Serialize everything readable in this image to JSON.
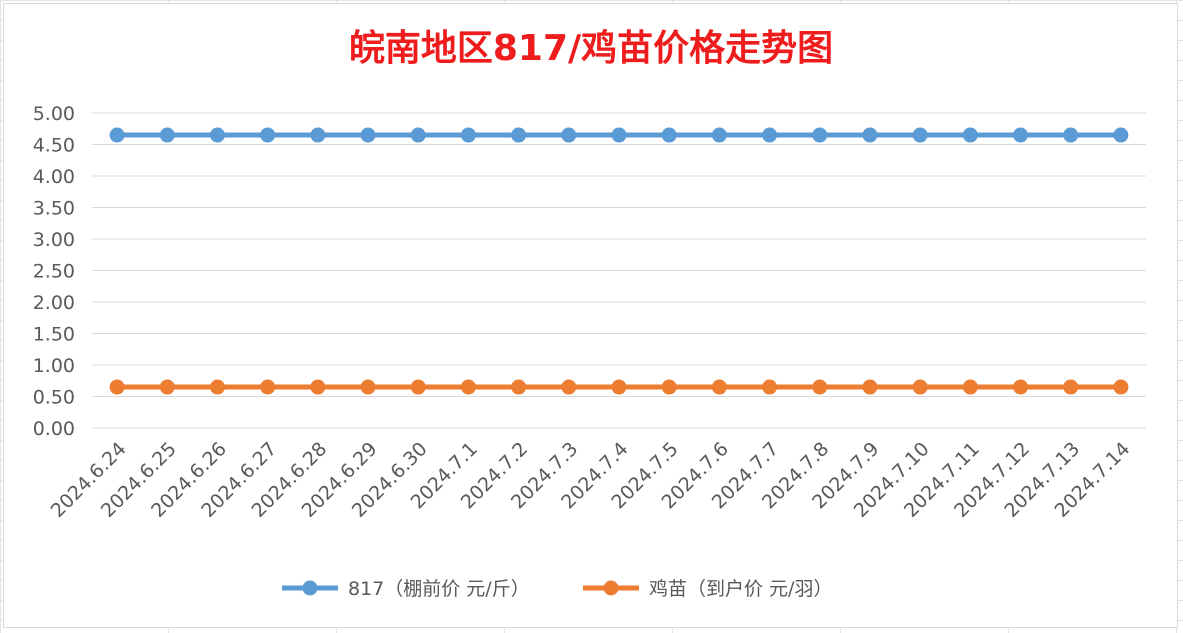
{
  "chart_data": {
    "type": "line",
    "title": "皖南地区817/鸡苗价格走势图",
    "categories": [
      "2024.6.24",
      "2024.6.25",
      "2024.6.26",
      "2024.6.27",
      "2024.6.28",
      "2024.6.29",
      "2024.6.30",
      "2024.7.1",
      "2024.7.2",
      "2024.7.3",
      "2024.7.4",
      "2024.7.5",
      "2024.7.6",
      "2024.7.7",
      "2024.7.8",
      "2024.7.9",
      "2024.7.10",
      "2024.7.11",
      "2024.7.12",
      "2024.7.13",
      "2024.7.14"
    ],
    "series": [
      {
        "name": "817（棚前价 元/斤）",
        "color": "#5b9bd5",
        "values": [
          4.65,
          4.65,
          4.65,
          4.65,
          4.65,
          4.65,
          4.65,
          4.65,
          4.65,
          4.65,
          4.65,
          4.65,
          4.65,
          4.65,
          4.65,
          4.65,
          4.65,
          4.65,
          4.65,
          4.65,
          4.65
        ]
      },
      {
        "name": "鸡苗（到户价 元/羽）",
        "color": "#ed7d31",
        "values": [
          0.65,
          0.65,
          0.65,
          0.65,
          0.65,
          0.65,
          0.65,
          0.65,
          0.65,
          0.65,
          0.65,
          0.65,
          0.65,
          0.65,
          0.65,
          0.65,
          0.65,
          0.65,
          0.65,
          0.65,
          0.65
        ]
      }
    ],
    "ylim": [
      0,
      5
    ],
    "yticks": [
      "0.00",
      "0.50",
      "1.00",
      "1.50",
      "2.00",
      "2.50",
      "3.00",
      "3.50",
      "4.00",
      "4.50",
      "5.00"
    ],
    "grid": true,
    "legend": "bottom"
  }
}
